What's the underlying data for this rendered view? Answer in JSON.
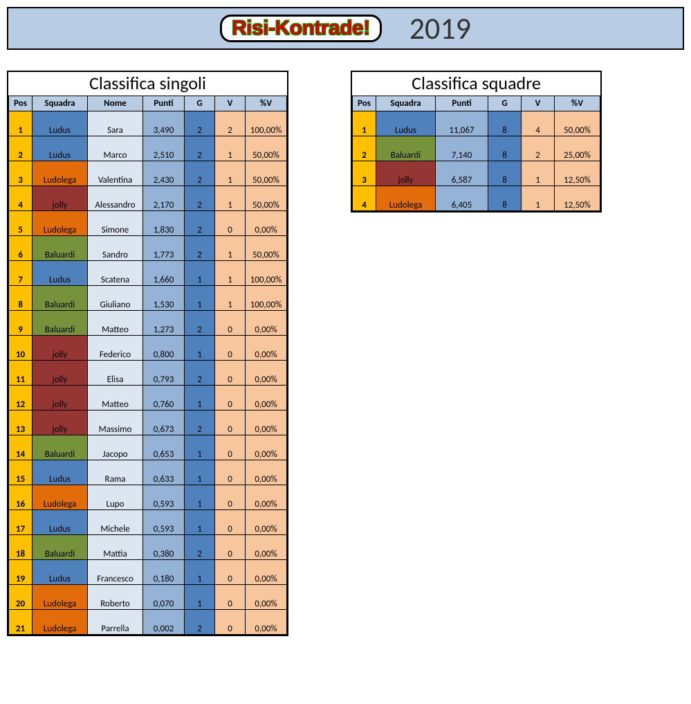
{
  "header": {
    "logo_text": "Risi-Kontrade!",
    "year": "2019",
    "bg_color": "#b8cce4"
  },
  "squadra_colors": {
    "Ludus": "#4f81bd",
    "Ludolega": "#e26b0a",
    "jolly": "#963634",
    "Baluardi": "#76933c"
  },
  "column_colors": {
    "pos": "#ffc000",
    "header_bg": "#b8cce4",
    "nome": "#dce6f1",
    "punti": "#95b3d7",
    "g": "#4f81bd",
    "v": "#f8c69c",
    "pct": "#f8c69c"
  },
  "singles": {
    "title": "Classifica singoli",
    "columns": [
      "Pos",
      "Squadra",
      "Nome",
      "Punti",
      "G",
      "V",
      "%V"
    ],
    "rows": [
      {
        "pos": "1",
        "squadra": "Ludus",
        "nome": "Sara",
        "punti": "3,490",
        "g": "2",
        "v": "2",
        "pct": "100,00%"
      },
      {
        "pos": "2",
        "squadra": "Ludus",
        "nome": "Marco",
        "punti": "2,510",
        "g": "2",
        "v": "1",
        "pct": "50,00%"
      },
      {
        "pos": "3",
        "squadra": "Ludolega",
        "nome": "Valentina",
        "punti": "2,430",
        "g": "2",
        "v": "1",
        "pct": "50,00%"
      },
      {
        "pos": "4",
        "squadra": "jolly",
        "nome": "Alessandro",
        "punti": "2,170",
        "g": "2",
        "v": "1",
        "pct": "50,00%"
      },
      {
        "pos": "5",
        "squadra": "Ludolega",
        "nome": "Simone",
        "punti": "1,830",
        "g": "2",
        "v": "0",
        "pct": "0,00%"
      },
      {
        "pos": "6",
        "squadra": "Baluardi",
        "nome": "Sandro",
        "punti": "1,773",
        "g": "2",
        "v": "1",
        "pct": "50,00%"
      },
      {
        "pos": "7",
        "squadra": "Ludus",
        "nome": "Scatena",
        "punti": "1,660",
        "g": "1",
        "v": "1",
        "pct": "100,00%"
      },
      {
        "pos": "8",
        "squadra": "Baluardi",
        "nome": "Giuliano",
        "punti": "1,530",
        "g": "1",
        "v": "1",
        "pct": "100,00%"
      },
      {
        "pos": "9",
        "squadra": "Baluardi",
        "nome": "Matteo",
        "punti": "1,273",
        "g": "2",
        "v": "0",
        "pct": "0,00%"
      },
      {
        "pos": "10",
        "squadra": "jolly",
        "nome": "Federico",
        "punti": "0,800",
        "g": "1",
        "v": "0",
        "pct": "0,00%"
      },
      {
        "pos": "11",
        "squadra": "jolly",
        "nome": "Elisa",
        "punti": "0,793",
        "g": "2",
        "v": "0",
        "pct": "0,00%"
      },
      {
        "pos": "12",
        "squadra": "jolly",
        "nome": "Matteo",
        "punti": "0,760",
        "g": "1",
        "v": "0",
        "pct": "0,00%"
      },
      {
        "pos": "13",
        "squadra": "jolly",
        "nome": "Massimo",
        "punti": "0,673",
        "g": "2",
        "v": "0",
        "pct": "0,00%"
      },
      {
        "pos": "14",
        "squadra": "Baluardi",
        "nome": "Jacopo",
        "punti": "0,653",
        "g": "1",
        "v": "0",
        "pct": "0,00%"
      },
      {
        "pos": "15",
        "squadra": "Ludus",
        "nome": "Rama",
        "punti": "0,633",
        "g": "1",
        "v": "0",
        "pct": "0,00%"
      },
      {
        "pos": "16",
        "squadra": "Ludolega",
        "nome": "Lupo",
        "punti": "0,593",
        "g": "1",
        "v": "0",
        "pct": "0,00%"
      },
      {
        "pos": "17",
        "squadra": "Ludus",
        "nome": "Michele",
        "punti": "0,593",
        "g": "1",
        "v": "0",
        "pct": "0,00%"
      },
      {
        "pos": "18",
        "squadra": "Baluardi",
        "nome": "Mattia",
        "punti": "0,380",
        "g": "2",
        "v": "0",
        "pct": "0,00%"
      },
      {
        "pos": "19",
        "squadra": "Ludus",
        "nome": "Francesco",
        "punti": "0,180",
        "g": "1",
        "v": "0",
        "pct": "0,00%"
      },
      {
        "pos": "20",
        "squadra": "Ludolega",
        "nome": "Roberto",
        "punti": "0,070",
        "g": "1",
        "v": "0",
        "pct": "0,00%"
      },
      {
        "pos": "21",
        "squadra": "Ludolega",
        "nome": "Parrella",
        "punti": "0,002",
        "g": "2",
        "v": "0",
        "pct": "0,00%"
      }
    ]
  },
  "teams": {
    "title": "Classifica squadre",
    "columns": [
      "Pos",
      "Squadra",
      "Punti",
      "G",
      "V",
      "%V"
    ],
    "rows": [
      {
        "pos": "1",
        "squadra": "Ludus",
        "punti": "11,067",
        "g": "8",
        "v": "4",
        "pct": "50,00%"
      },
      {
        "pos": "2",
        "squadra": "Baluardi",
        "punti": "7,140",
        "g": "8",
        "v": "2",
        "pct": "25,00%"
      },
      {
        "pos": "3",
        "squadra": "jolly",
        "punti": "6,587",
        "g": "8",
        "v": "1",
        "pct": "12,50%"
      },
      {
        "pos": "4",
        "squadra": "Ludolega",
        "punti": "6,405",
        "g": "8",
        "v": "1",
        "pct": "12,50%"
      }
    ]
  }
}
